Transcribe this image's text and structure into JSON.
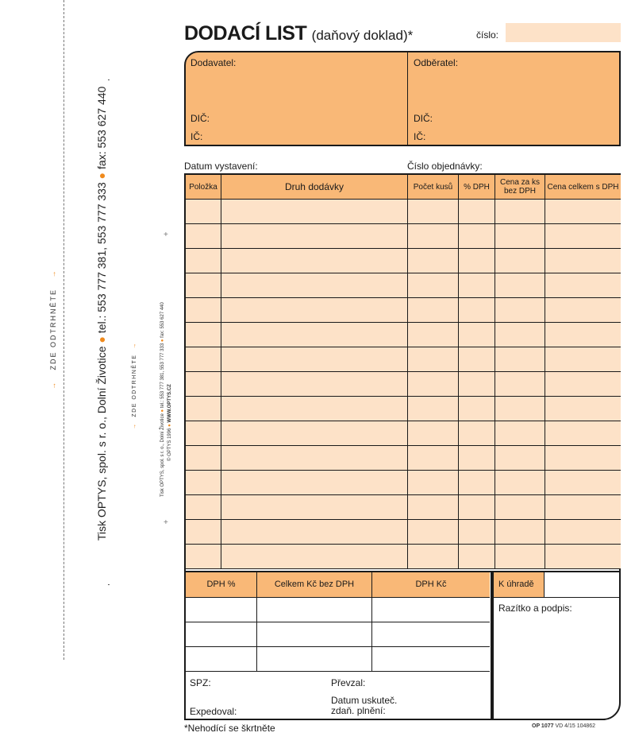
{
  "side": {
    "print_info": [
      "Tisk OPTYS, spol. s r. o., Dolní Životice",
      "tel.: 553 777 381, 553 777 333",
      "fax: 553 627 440"
    ],
    "tear_here": "ZDE ODTRHNĚTE",
    "arrow": "→",
    "small_print_line1": [
      "Tisk OPTYS, spol. s r. o., Dolní Životice",
      "tel.: 553 777 381, 553 777 333",
      "fax: 553 627 440"
    ],
    "small_print_line2": [
      "© OPTYS 1996",
      "WWW.OPTYS.CZ"
    ]
  },
  "header": {
    "title": "DODACÍ LIST",
    "subtitle": "(daňový doklad)*",
    "number_label": "číslo:",
    "number_value": ""
  },
  "parties": {
    "supplier": "Dodavatel:",
    "customer": "Odběratel:",
    "dic": "DIČ:",
    "ic": "IČ:"
  },
  "meta": {
    "issue_date": "Datum vystavení:",
    "order_number": "Číslo objednávky:"
  },
  "items_table": {
    "columns": [
      "Položka",
      "Druh dodávky",
      "Počet kusů",
      "% DPH",
      "Cena za ks bez DPH",
      "Cena celkem s DPH"
    ],
    "rows": 15
  },
  "summary": {
    "columns": [
      "DPH %",
      "Celkem Kč bez DPH",
      "DPH Kč"
    ],
    "to_pay": "K úhradě",
    "stamp": "Razítko a podpis:",
    "spz": "SPZ:",
    "dispatched": "Expedoval:",
    "received": "Převzal:",
    "tax_date": "Datum uskuteč. zdaň. plnění:"
  },
  "footer": {
    "note": "*Nehodící se škrtněte",
    "code_bold": "OP 1077",
    "code": "VD 4/15  104862"
  },
  "colors": {
    "orange": "#f9b877",
    "light_orange": "#fde2c8",
    "accent_dot": "#f08a1c"
  }
}
